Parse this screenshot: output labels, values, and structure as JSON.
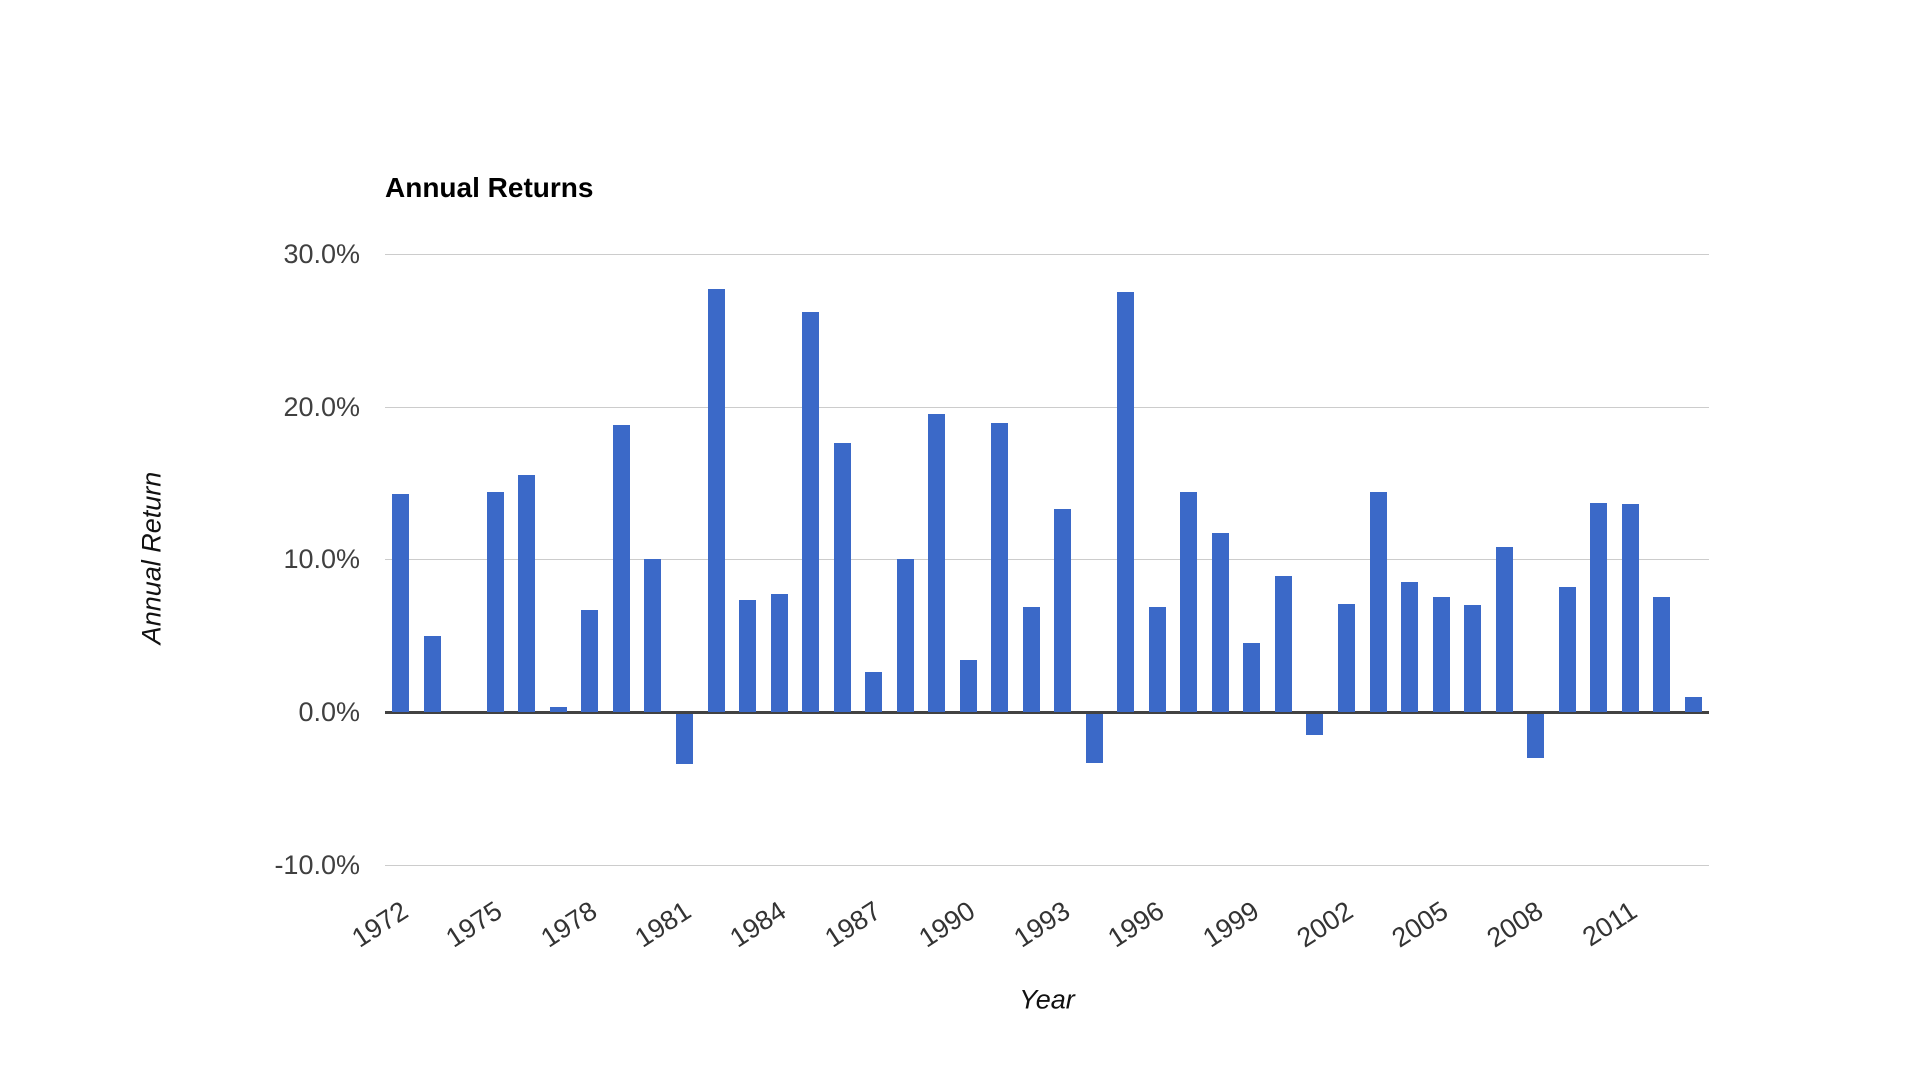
{
  "page": {
    "background_color": "#ffffff"
  },
  "chart_data": {
    "type": "bar",
    "title": "Annual Returns",
    "xlabel": "Year",
    "ylabel": "Annual Return",
    "legend": "none",
    "grid": "horizontal",
    "value_format": "percent",
    "ylim": [
      -10,
      30
    ],
    "categories": [
      1972,
      1973,
      1974,
      1975,
      1976,
      1977,
      1978,
      1979,
      1980,
      1981,
      1982,
      1983,
      1984,
      1985,
      1986,
      1987,
      1988,
      1989,
      1990,
      1991,
      1992,
      1993,
      1994,
      1995,
      1996,
      1997,
      1998,
      1999,
      2000,
      2001,
      2002,
      2003,
      2004,
      2005,
      2006,
      2007,
      2008,
      2009,
      2010,
      2011,
      2012,
      2013
    ],
    "values": [
      14.3,
      5.0,
      0.0,
      14.4,
      15.5,
      0.3,
      6.7,
      18.8,
      10.0,
      -3.3,
      27.7,
      7.3,
      7.7,
      26.2,
      17.6,
      2.6,
      10.0,
      19.5,
      3.4,
      18.9,
      6.9,
      13.3,
      -3.2,
      27.5,
      6.9,
      14.4,
      11.7,
      4.5,
      8.9,
      -1.4,
      7.1,
      14.4,
      8.5,
      7.5,
      7.0,
      10.8,
      -2.9,
      8.2,
      13.7,
      13.6,
      7.5,
      1.0
    ],
    "yticks": [
      {
        "value": 30,
        "label": "30.0%"
      },
      {
        "value": 20,
        "label": "20.0%"
      },
      {
        "value": 10,
        "label": "10.0%"
      },
      {
        "value": 0,
        "label": "0.0%"
      },
      {
        "value": -10,
        "label": "-10.0%"
      }
    ],
    "xticks": [
      "1972",
      "1975",
      "1978",
      "1981",
      "1984",
      "1987",
      "1990",
      "1993",
      "1996",
      "1999",
      "2002",
      "2005",
      "2008",
      "2011"
    ],
    "colors": {
      "series": "#3b69c8",
      "gridline": "#cccccc",
      "zero_axis": "#424242",
      "tick_label": "#404040",
      "title": "#000000"
    }
  }
}
